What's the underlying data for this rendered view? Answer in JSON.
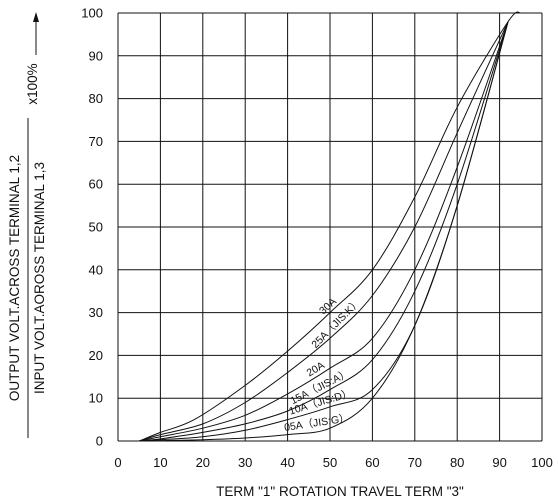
{
  "chart_data": {
    "type": "line",
    "title": "",
    "xlabel": "TERM \"1\" ROTATION TRAVEL TERM \"3\"",
    "ylabel_numerator": "OUTPUT VOLT.ACROSS TERMINAL 1,2",
    "ylabel_denominator": "INPUT VOLT.AOROSS TERMINAL 1,3",
    "ylabel_multiplier": "x100%",
    "xlim": [
      0,
      100
    ],
    "ylim": [
      0,
      100
    ],
    "x_ticks": [
      "0",
      "10",
      "20",
      "30",
      "40",
      "50",
      "60",
      "70",
      "80",
      "90",
      "100"
    ],
    "y_ticks": [
      "0",
      "10",
      "20",
      "30",
      "40",
      "50",
      "60",
      "70",
      "80",
      "90",
      "100"
    ],
    "grid": true,
    "series": [
      {
        "name": "30A",
        "label": "30A",
        "x": [
          5,
          10,
          18,
          30,
          40,
          50,
          60,
          70,
          80,
          92,
          95
        ],
        "y": [
          0,
          2,
          5,
          13,
          21,
          30,
          40,
          57,
          78,
          98,
          100
        ]
      },
      {
        "name": "25A (JIS:K)",
        "label": "25A（JIS:K）",
        "x": [
          5,
          10,
          20,
          30,
          40,
          50,
          60,
          70,
          80,
          92
        ],
        "y": [
          0,
          1.5,
          4,
          9,
          16,
          24,
          34,
          50,
          72,
          98
        ]
      },
      {
        "name": "20A",
        "label": "20A",
        "x": [
          5,
          10,
          20,
          30,
          40,
          50,
          60,
          70,
          80,
          92
        ],
        "y": [
          0,
          1,
          3,
          6,
          11,
          17,
          24,
          40,
          64,
          98
        ]
      },
      {
        "name": "15A (JIS:A)",
        "label": "15A（JIS:A）",
        "x": [
          5,
          10,
          20,
          30,
          40,
          50,
          60,
          70,
          80,
          92
        ],
        "y": [
          0,
          0.5,
          2,
          4,
          7,
          12,
          19,
          35,
          60,
          98
        ]
      },
      {
        "name": "10A (JIS:D)",
        "label": "10A（JIS:D）",
        "x": [
          5,
          10,
          20,
          30,
          40,
          50,
          60,
          70,
          80,
          92
        ],
        "y": [
          0,
          0.3,
          1,
          2.5,
          5,
          8,
          12,
          27,
          55,
          98
        ]
      },
      {
        "name": "05A (JIS:G)",
        "label": "05A（JIS:G）",
        "x": [
          5,
          10,
          20,
          30,
          40,
          50,
          60,
          70,
          80,
          92
        ],
        "y": [
          0,
          0.1,
          0.3,
          0.7,
          1.5,
          3,
          10,
          27,
          55,
          98
        ]
      }
    ]
  }
}
